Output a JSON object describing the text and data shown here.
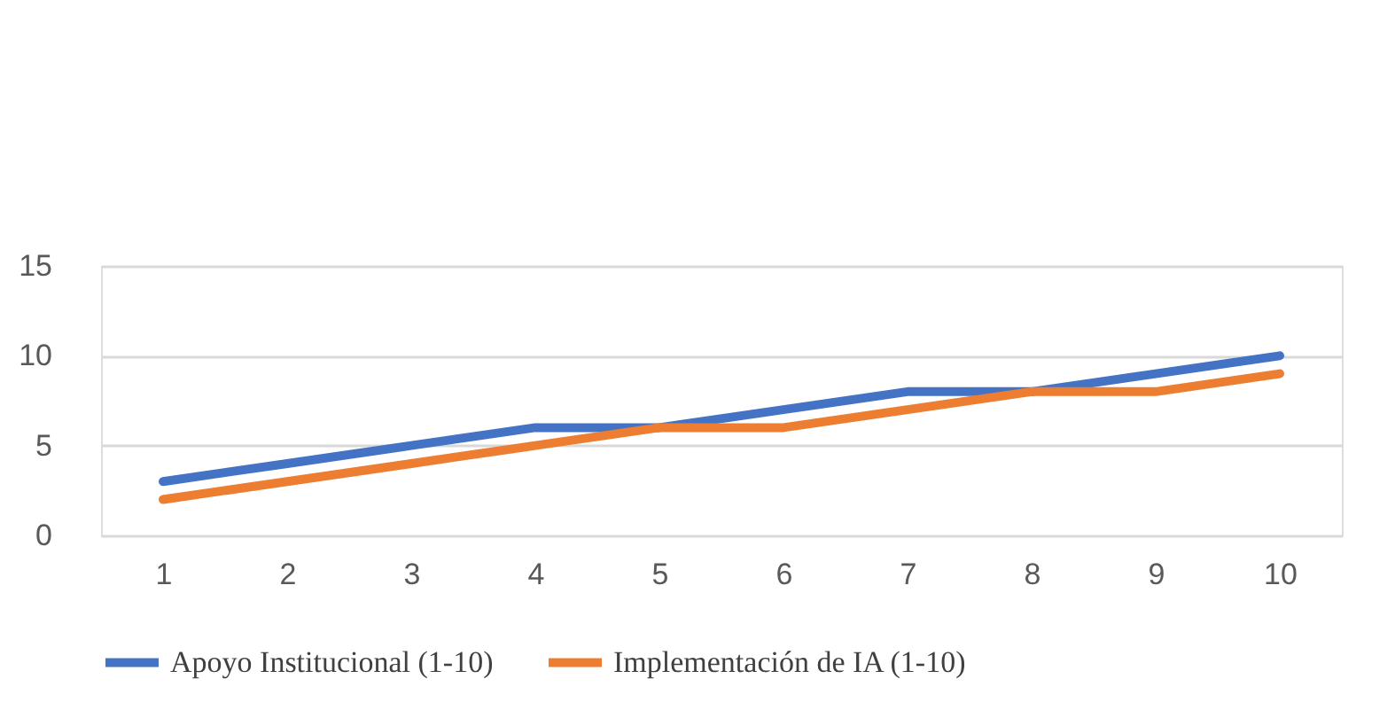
{
  "chart_data": {
    "type": "line",
    "categories": [
      "1",
      "2",
      "3",
      "4",
      "5",
      "6",
      "7",
      "8",
      "9",
      "10"
    ],
    "series": [
      {
        "name": "Apoyo Institucional (1-10)",
        "color": "#4472c4",
        "values": [
          3,
          4,
          5,
          6,
          6,
          7,
          8,
          8,
          9,
          10
        ]
      },
      {
        "name": "Implementación de IA (1-10)",
        "color": "#ed7d31",
        "values": [
          2,
          3,
          4,
          5,
          6,
          6,
          7,
          8,
          8,
          9
        ]
      }
    ],
    "ylim": [
      0,
      15
    ],
    "yticks": [
      0,
      5,
      10,
      15
    ],
    "grid": "y",
    "legend": "bottom",
    "marker": "none",
    "line_style": "solid"
  }
}
